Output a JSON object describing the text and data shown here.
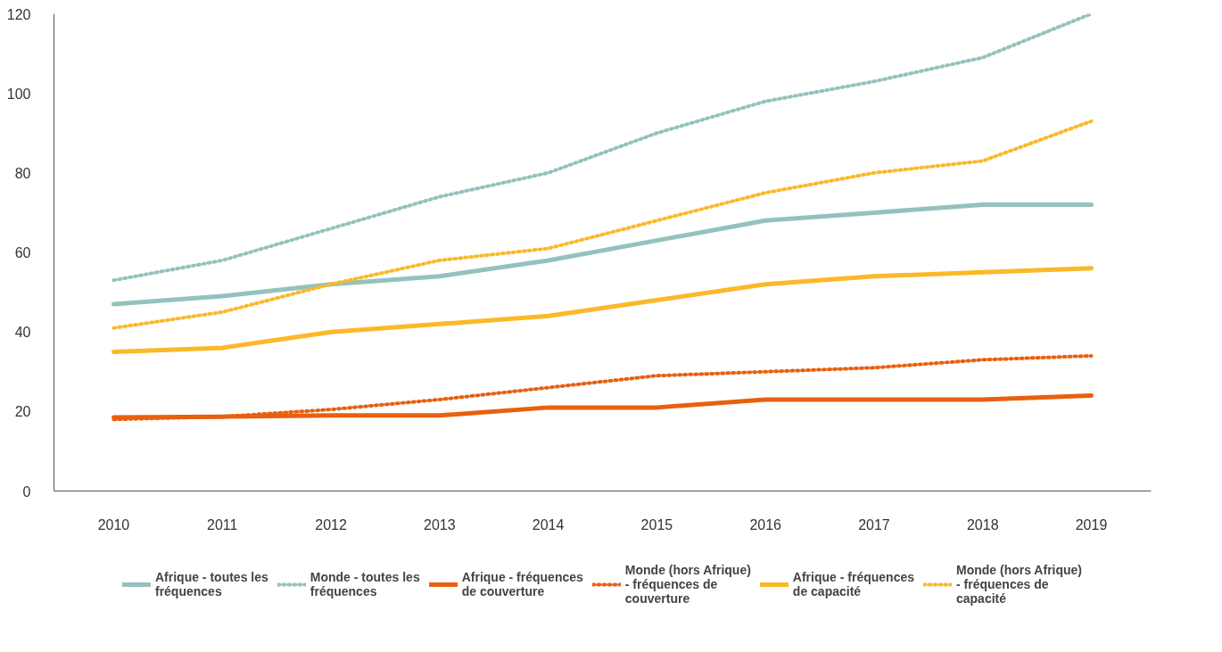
{
  "chart_data": {
    "type": "line",
    "categories": [
      "2010",
      "2011",
      "2012",
      "2013",
      "2014",
      "2015",
      "2016",
      "2017",
      "2018",
      "2019"
    ],
    "ylim": [
      0,
      120
    ],
    "yticks": [
      0,
      20,
      40,
      60,
      80,
      100,
      120
    ],
    "grid": false,
    "legend": "bottom",
    "marker": "none",
    "series": [
      {
        "name": "Afrique - toutes les fréquences",
        "color": "#93c2bd",
        "line_style": "solid",
        "values": [
          47,
          49,
          52,
          54,
          58,
          63,
          68,
          70,
          72,
          72
        ]
      },
      {
        "name": "Monde - toutes les fréquences",
        "color": "#93c2bd",
        "line_style": "dotted",
        "values": [
          53,
          58,
          66,
          74,
          80,
          90,
          98,
          103,
          109,
          120
        ]
      },
      {
        "name": "Afrique - fréquences de couverture",
        "color": "#e8600f",
        "line_style": "solid",
        "values": [
          18.5,
          18.7,
          19,
          19,
          21,
          21,
          23,
          23,
          23,
          24
        ]
      },
      {
        "name": "Monde (hors Afrique) - fréquences de couverture",
        "color": "#e8600f",
        "line_style": "dotted",
        "values": [
          18,
          18.7,
          20.5,
          23,
          26,
          29,
          30,
          31,
          33,
          34
        ]
      },
      {
        "name": "Afrique - fréquences de capacité",
        "color": "#fbb829",
        "line_style": "solid",
        "values": [
          35,
          36,
          40,
          42,
          44,
          48,
          52,
          54,
          55,
          56
        ]
      },
      {
        "name": "Monde (hors Afrique) - fréquences de capacité",
        "color": "#fbb829",
        "line_style": "dotted",
        "values": [
          41,
          45,
          52,
          58,
          61,
          68,
          75,
          80,
          83,
          93
        ]
      }
    ]
  }
}
